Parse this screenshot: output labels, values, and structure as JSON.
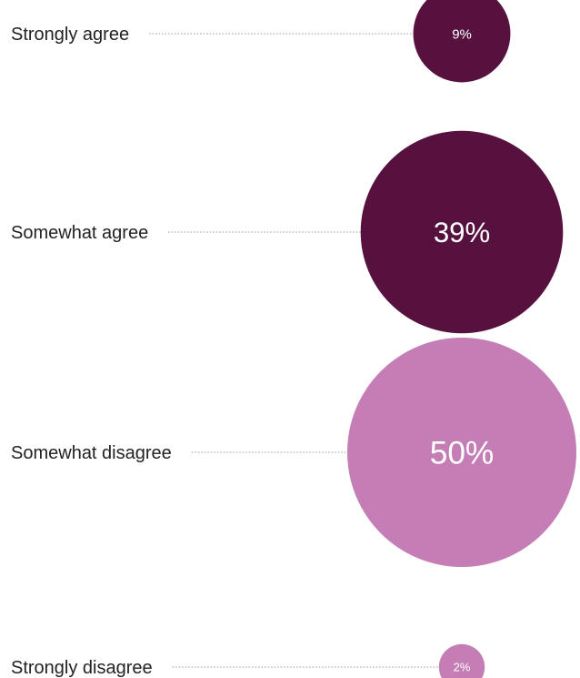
{
  "chart_data": {
    "type": "bubble",
    "title": "",
    "categories": [
      "Strongly agree",
      "Somewhat agree",
      "Somewhat disagree",
      "Strongly disagree"
    ],
    "values": [
      9,
      39,
      50,
      2
    ],
    "value_labels": [
      "9%",
      "39%",
      "50%",
      "2%"
    ],
    "unit": "%",
    "colors": [
      "#56113f",
      "#56113f",
      "#c47eb5",
      "#c47eb5"
    ],
    "legend": "none",
    "grid": false
  }
}
